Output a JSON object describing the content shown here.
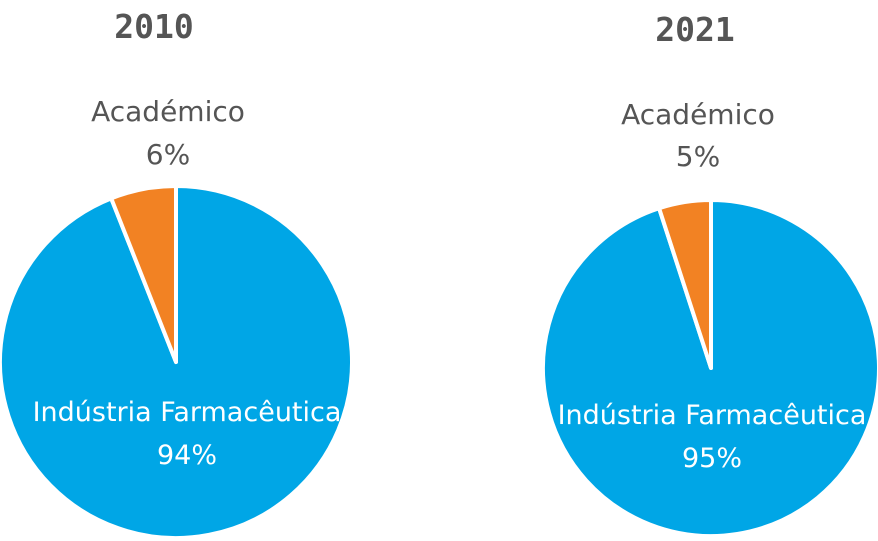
{
  "chart_data": [
    {
      "type": "pie",
      "title": "2010",
      "slices": [
        {
          "label": "Indústria Farmacêutica",
          "value": 94,
          "value_label": "94%",
          "color": "#00a6e6",
          "label_placement": "inside"
        },
        {
          "label": "Académico",
          "value": 6,
          "value_label": "6%",
          "color": "#f28223",
          "label_placement": "outside"
        }
      ],
      "start": "12 o'clock",
      "order": "small slice ends at 12 o'clock, counter-clockwise",
      "slice_separator_color": "#ffffff"
    },
    {
      "type": "pie",
      "title": "2021",
      "slices": [
        {
          "label": "Indústria Farmacêutica",
          "value": 95,
          "value_label": "95%",
          "color": "#00a6e6",
          "label_placement": "inside"
        },
        {
          "label": "Académico",
          "value": 5,
          "value_label": "5%",
          "color": "#f28223",
          "label_placement": "outside"
        }
      ],
      "start": "12 o'clock",
      "order": "small slice ends at 12 o'clock, counter-clockwise",
      "slice_separator_color": "#ffffff"
    }
  ]
}
